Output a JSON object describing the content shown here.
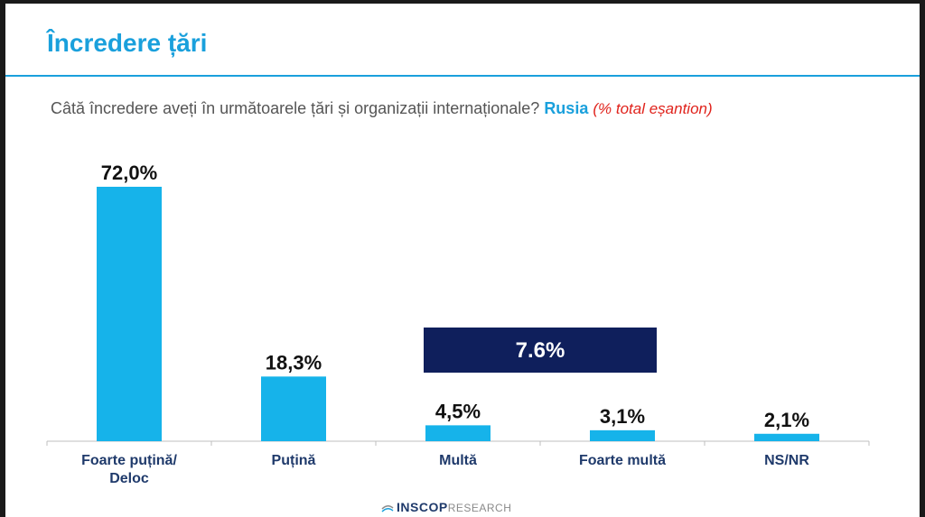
{
  "header": {
    "title": "Încredere țări"
  },
  "question": {
    "text": "Câtă încredere aveți în următoarele țări și organizații internaționale?",
    "country": "Rusia",
    "sample_note": "(% total eșantion)"
  },
  "chart_data": {
    "type": "bar",
    "categories": [
      [
        "Foarte puțină/",
        "Deloc"
      ],
      [
        "Puțină"
      ],
      [
        "Multă"
      ],
      [
        "Foarte multă"
      ],
      [
        "NS/NR"
      ]
    ],
    "values": [
      72.0,
      18.3,
      4.5,
      3.1,
      2.1
    ],
    "value_labels": [
      "72,0%",
      "18,3%",
      "4,5%",
      "3,1%",
      "2,1%"
    ],
    "ylim": [
      0,
      72
    ],
    "grid": false,
    "legend": "none",
    "annotations": [
      {
        "text": "7.6%",
        "spans_categories": [
          "Multă",
          "Foarte multă"
        ]
      }
    ]
  },
  "colors": {
    "accent": "#1aa0dc",
    "bar": "#16b3ea",
    "aggregate_box": "#0f1f5c",
    "sample_note": "#e0231c"
  },
  "footer": {
    "logo_strong": "INSCOP",
    "logo_light": "RESEARCH"
  }
}
